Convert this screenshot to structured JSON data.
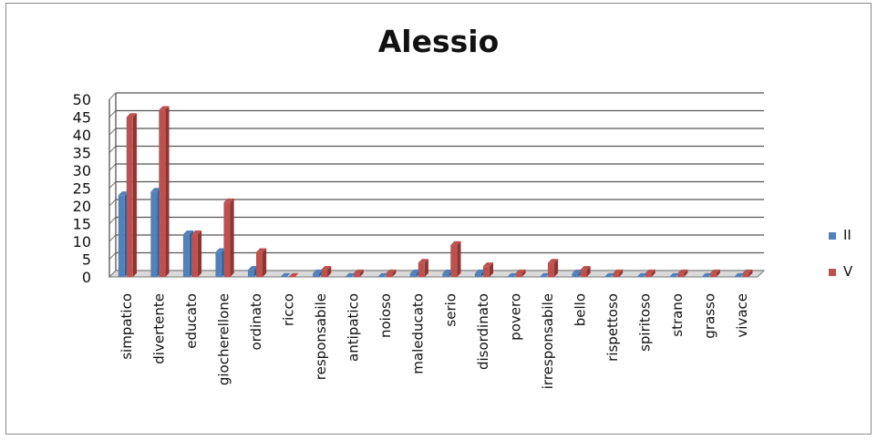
{
  "chart_data": {
    "type": "bar",
    "title": "Alessio",
    "categories": [
      "simpatico",
      "divertente",
      "educato",
      "giocherellone",
      "ordinato",
      "ricco",
      "responsabile",
      "antipatico",
      "noioso",
      "maleducato",
      "serio",
      "disordinato",
      "povero",
      "irresponsabile",
      "bello",
      "rispettoso",
      "spiritoso",
      "strano",
      "grasso",
      "vivace"
    ],
    "series": [
      {
        "name": "II",
        "color": "#4f81bd",
        "values": [
          23,
          24,
          12,
          7,
          2,
          0,
          1,
          0,
          0,
          1,
          1,
          1,
          0,
          0,
          1,
          0,
          0,
          0,
          0,
          0
        ]
      },
      {
        "name": "V",
        "color": "#c0504d",
        "values": [
          45,
          47,
          12,
          21,
          7,
          0,
          2,
          1,
          1,
          4,
          9,
          3,
          1,
          4,
          2,
          1,
          1,
          1,
          1,
          1
        ]
      }
    ],
    "yticks": [
      0,
      5,
      10,
      15,
      20,
      25,
      30,
      35,
      40,
      45,
      50
    ],
    "ylim": [
      0,
      50
    ],
    "grid": true,
    "legend_position": "right",
    "chart_style": "3d-clustered-column"
  }
}
